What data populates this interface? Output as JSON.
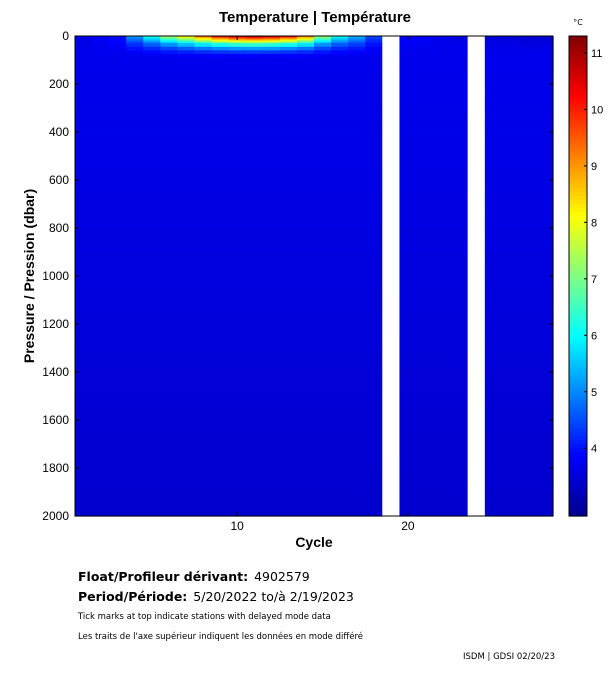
{
  "chart_data": {
    "type": "heatmap",
    "title": "Temperature | Température",
    "xlabel": "Cycle",
    "ylabel": "Pressure / Pression (dbar)",
    "xlim": [
      0.5,
      28.5
    ],
    "ylim": [
      0,
      2000
    ],
    "y_inverted": true,
    "x_ticks": [
      10,
      20
    ],
    "y_ticks": [
      0,
      200,
      400,
      600,
      800,
      1000,
      1200,
      1400,
      1600,
      1800,
      2000
    ],
    "colorbar": {
      "unit": "°C",
      "min": 2.8,
      "max": 11.3,
      "ticks": [
        4,
        5,
        6,
        7,
        8,
        9,
        10,
        11
      ],
      "colormap": [
        "#00008f",
        "#0000ff",
        "#0080ff",
        "#00ffff",
        "#80ff80",
        "#ffff00",
        "#ff8000",
        "#ff0000",
        "#800000"
      ]
    },
    "missing_cycles": [
      19,
      24
    ],
    "surface_layer": [
      {
        "cycle": 1,
        "t0": 3.6
      },
      {
        "cycle": 2,
        "t0": 3.8
      },
      {
        "cycle": 3,
        "t0": 4.0
      },
      {
        "cycle": 4,
        "t0": 5.2
      },
      {
        "cycle": 5,
        "t0": 6.3
      },
      {
        "cycle": 6,
        "t0": 7.5
      },
      {
        "cycle": 7,
        "t0": 8.5
      },
      {
        "cycle": 8,
        "t0": 9.6
      },
      {
        "cycle": 9,
        "t0": 10.5
      },
      {
        "cycle": 10,
        "t0": 11.0
      },
      {
        "cycle": 11,
        "t0": 11.2
      },
      {
        "cycle": 12,
        "t0": 11.0
      },
      {
        "cycle": 13,
        "t0": 10.5
      },
      {
        "cycle": 14,
        "t0": 9.5
      },
      {
        "cycle": 15,
        "t0": 7.5
      },
      {
        "cycle": 16,
        "t0": 6.2
      },
      {
        "cycle": 17,
        "t0": 5.5
      },
      {
        "cycle": 18,
        "t0": 4.5
      },
      {
        "cycle": 20,
        "t0": 3.9
      },
      {
        "cycle": 21,
        "t0": 3.8
      },
      {
        "cycle": 22,
        "t0": 3.7
      },
      {
        "cycle": 23,
        "t0": 3.6
      },
      {
        "cycle": 25,
        "t0": 3.5
      },
      {
        "cycle": 26,
        "t0": 3.5
      },
      {
        "cycle": 27,
        "t0": 3.4
      },
      {
        "cycle": 28,
        "t0": 3.4
      }
    ],
    "deep_temperature": {
      "below_100dbar": 3.7,
      "at_2000dbar": 3.4
    }
  },
  "info": {
    "float_label": "Float/Profileur dérivant:",
    "float_value": "4902579",
    "period_label": "Period/Période:",
    "period_value": "5/20/2022  to/à  2/19/2023",
    "note_en": "Tick marks at top indicate stations with delayed mode data",
    "note_fr": "Les traits de l'axe supérieur indiquent les données en mode différé"
  },
  "credit": "ISDM | GDSI  02/20/23"
}
